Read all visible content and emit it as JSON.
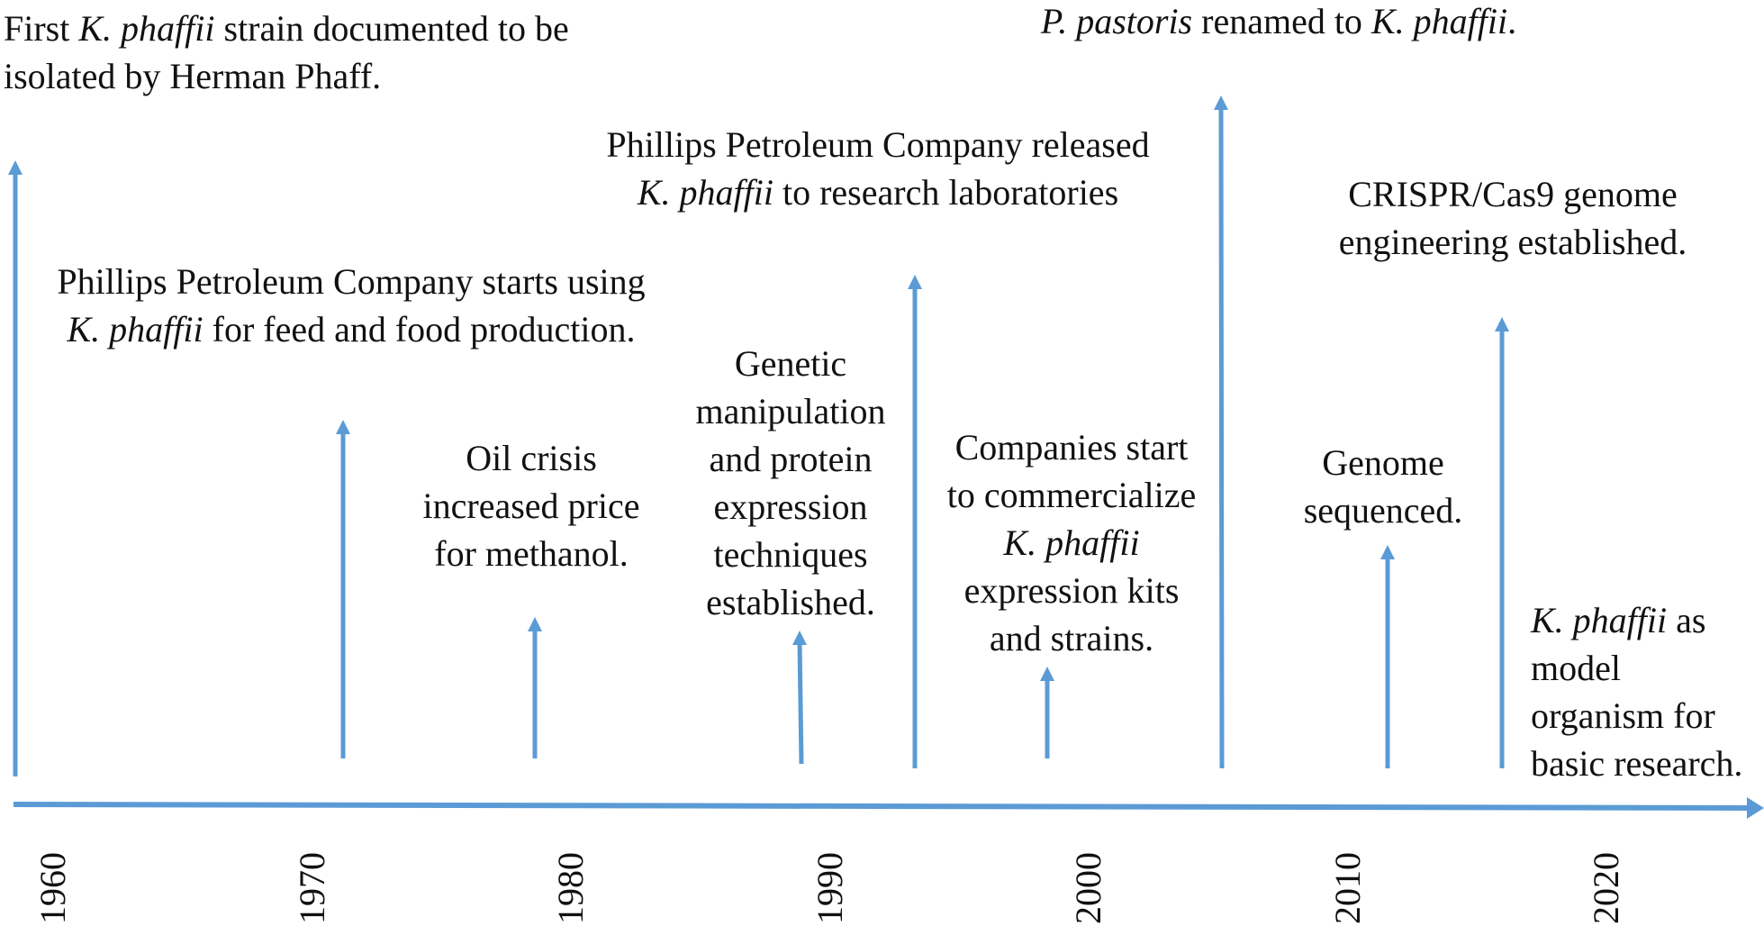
{
  "diagram": {
    "line_color": "#5B9BD5",
    "axis": {
      "years": [
        "1960",
        "1970",
        "1980",
        "1990",
        "2000",
        "2010",
        "2020"
      ]
    },
    "events": [
      {
        "id": "phaff-isolation",
        "lines": [
          [
            {
              "t": "First "
            },
            {
              "t": "K. phaffii",
              "i": true
            },
            {
              "t": " strain documented to be"
            }
          ],
          [
            {
              "t": "isolated by Herman Phaff."
            }
          ]
        ]
      },
      {
        "id": "phillips-feed",
        "lines": [
          [
            {
              "t": "Phillips Petroleum Company starts using"
            }
          ],
          [
            {
              "t": "K. phaffii",
              "i": true
            },
            {
              "t": " for feed and food production."
            }
          ]
        ]
      },
      {
        "id": "oil-crisis",
        "lines": [
          [
            {
              "t": "Oil crisis"
            }
          ],
          [
            {
              "t": "increased price"
            }
          ],
          [
            {
              "t": "for methanol."
            }
          ]
        ]
      },
      {
        "id": "genetic-manipulation",
        "lines": [
          [
            {
              "t": "Genetic"
            }
          ],
          [
            {
              "t": "manipulation"
            }
          ],
          [
            {
              "t": "and protein"
            }
          ],
          [
            {
              "t": "expression"
            }
          ],
          [
            {
              "t": "techniques"
            }
          ],
          [
            {
              "t": "established."
            }
          ]
        ]
      },
      {
        "id": "phillips-release",
        "lines": [
          [
            {
              "t": "Phillips Petroleum Company released"
            }
          ],
          [
            {
              "t": "K. phaffii",
              "i": true
            },
            {
              "t": " to research laboratories"
            }
          ]
        ]
      },
      {
        "id": "companies-commercialize",
        "lines": [
          [
            {
              "t": "Companies start"
            }
          ],
          [
            {
              "t": "to commercialize"
            }
          ],
          [
            {
              "t": "K. phaffii",
              "i": true
            }
          ],
          [
            {
              "t": "expression kits"
            }
          ],
          [
            {
              "t": "and strains."
            }
          ]
        ]
      },
      {
        "id": "renamed",
        "lines": [
          [
            {
              "t": "P. pastoris",
              "i": true
            },
            {
              "t": " renamed to "
            },
            {
              "t": "K. phaffii",
              "i": true
            },
            {
              "t": "."
            }
          ]
        ]
      },
      {
        "id": "genome-sequenced",
        "lines": [
          [
            {
              "t": "Genome"
            }
          ],
          [
            {
              "t": "sequenced."
            }
          ]
        ]
      },
      {
        "id": "crispr",
        "lines": [
          [
            {
              "t": "CRISPR/Cas9 genome"
            }
          ],
          [
            {
              "t": "engineering established."
            }
          ]
        ]
      },
      {
        "id": "model-organism",
        "lines": [
          [
            {
              "t": "K. phaffii",
              "i": true
            },
            {
              "t": " as"
            }
          ],
          [
            {
              "t": "model"
            }
          ],
          [
            {
              "t": "organism for"
            }
          ],
          [
            {
              "t": "basic research."
            }
          ]
        ]
      }
    ]
  }
}
